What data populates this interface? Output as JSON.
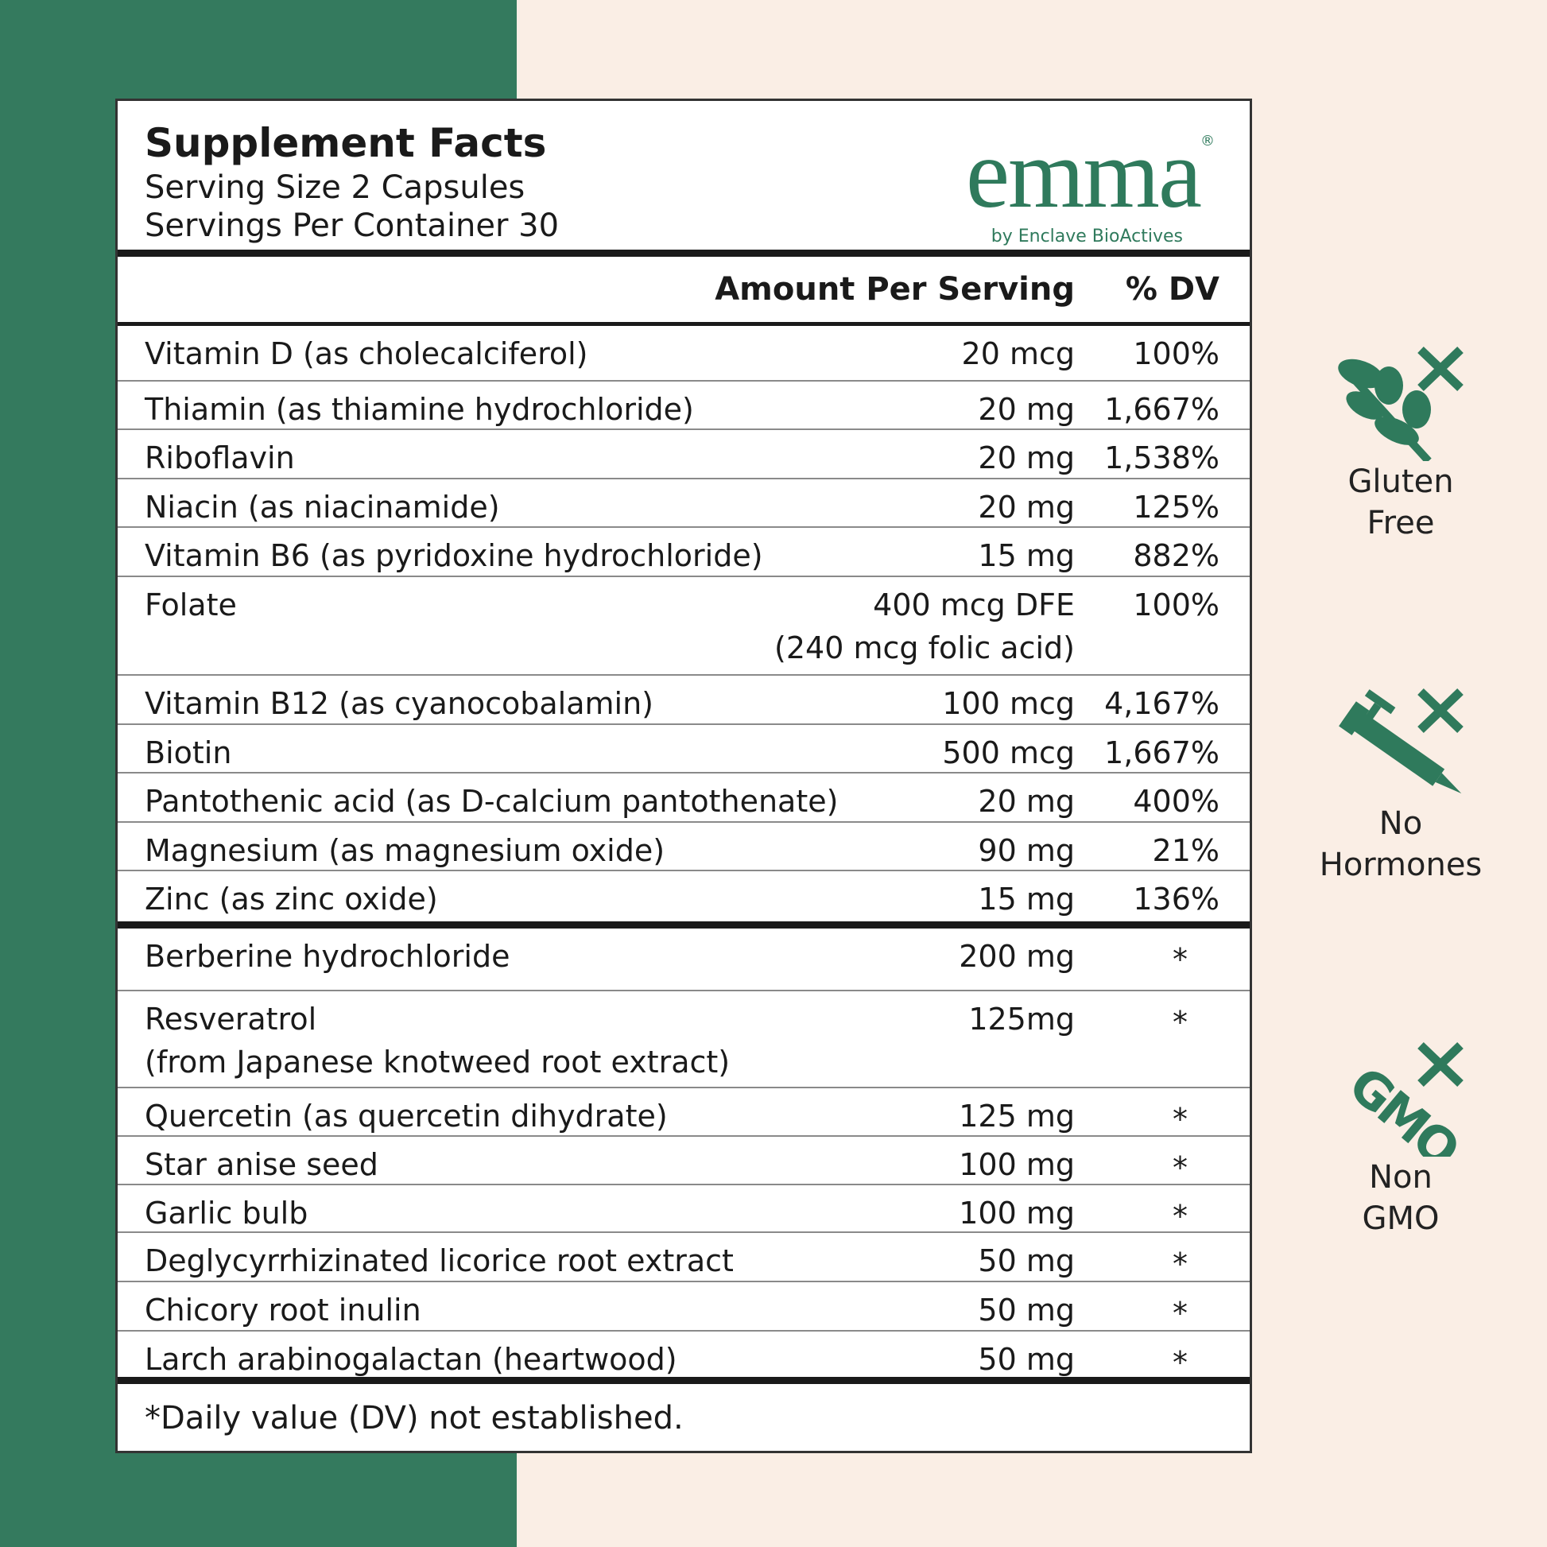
{
  "colors": {
    "brand_green": "#2f7a5c",
    "band_green": "#347a5e",
    "background": "#faeee5"
  },
  "header": {
    "title": "Supplement Facts",
    "serving_size": "Serving Size 2 Capsules",
    "servings_per_container": "Servings Per Container  30"
  },
  "logo": {
    "name": "emma",
    "registered": "®",
    "subtitle": "by Enclave BioActives"
  },
  "columns": {
    "amount": "Amount Per Serving",
    "dv": "% DV"
  },
  "vitamins": [
    {
      "name": "Vitamin D (as cholecalciferol)",
      "amount": "20 mcg",
      "dv": "100%"
    },
    {
      "name": "Thiamin (as thiamine hydrochloride)",
      "amount": "20 mg",
      "dv": "1,667%"
    },
    {
      "name": "Riboflavin",
      "amount": "20 mg",
      "dv": "1,538%"
    },
    {
      "name": "Niacin (as niacinamide)",
      "amount": "20 mg",
      "dv": "125%"
    },
    {
      "name": "Vitamin B6 (as pyridoxine hydrochloride)",
      "amount": "15 mg",
      "dv": "882%"
    },
    {
      "name": "Folate",
      "amount": "400 mcg DFE",
      "amount2": "(240 mcg folic acid)",
      "dv": "100%"
    },
    {
      "name": "Vitamin B12 (as cyanocobalamin)",
      "amount": "100 mcg",
      "dv": "4,167%"
    },
    {
      "name": "Biotin",
      "amount": "500 mcg",
      "dv": "1,667%"
    },
    {
      "name": "Pantothenic acid (as D-calcium pantothenate)",
      "amount": "20 mg",
      "dv": "400%"
    },
    {
      "name": "Magnesium (as magnesium oxide)",
      "amount": "90 mg",
      "dv": "21%"
    },
    {
      "name": "Zinc (as zinc oxide)",
      "amount": "15 mg",
      "dv": "136%"
    }
  ],
  "others": [
    {
      "name": "Berberine hydrochloride",
      "amount": "200 mg",
      "dv": "*"
    },
    {
      "name": "Resveratrol",
      "name2": "(from Japanese knotweed root extract)",
      "amount": "125mg",
      "dv": "*"
    },
    {
      "name": "Quercetin (as quercetin dihydrate)",
      "amount": "125 mg",
      "dv": "*"
    },
    {
      "name": "Star anise seed",
      "amount": "100 mg",
      "dv": "*"
    },
    {
      "name": "Garlic bulb",
      "amount": "100 mg",
      "dv": "*"
    },
    {
      "name": "Deglycyrrhizinated licorice root extract",
      "amount": "50 mg",
      "dv": "*"
    },
    {
      "name": "Chicory root inulin",
      "amount": "50 mg",
      "dv": "*"
    },
    {
      "name": "Larch arabinogalactan (heartwood)",
      "amount": "50 mg",
      "dv": "*"
    }
  ],
  "footnote": "*Daily value (DV) not established.",
  "badges": [
    {
      "icon": "wheat-crossed-icon",
      "line1": "Gluten",
      "line2": "Free"
    },
    {
      "icon": "syringe-crossed-icon",
      "line1": "No",
      "line2": "Hormones"
    },
    {
      "icon": "gmo-crossed-icon",
      "line1": "Non",
      "line2": "GMO"
    }
  ]
}
